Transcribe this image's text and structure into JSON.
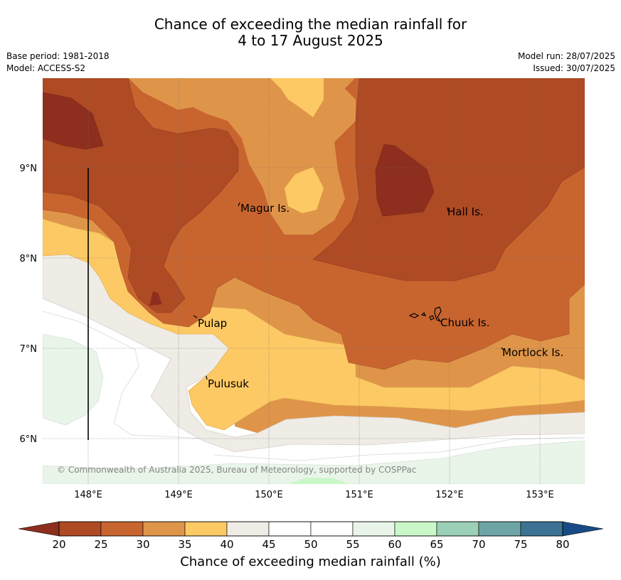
{
  "title": {
    "line1": "Chance of exceeding the median rainfall for",
    "line2": "4 to 17 August 2025"
  },
  "meta": {
    "base_period": "Base period: 1981-2018",
    "model": "Model: ACCESS-S2",
    "model_run": "Model run: 28/07/2025",
    "issued": "Issued: 30/07/2025"
  },
  "map": {
    "lon_ticks": [
      "148°E",
      "149°E",
      "150°E",
      "151°E",
      "152°E",
      "153°E"
    ],
    "lat_ticks": [
      "9°N",
      "8°N",
      "7°N",
      "6°N"
    ],
    "islands": [
      {
        "name": "Magur Is."
      },
      {
        "name": "Hall Is."
      },
      {
        "name": "Pulap"
      },
      {
        "name": "Chuuk Is."
      },
      {
        "name": "Mortlock Is."
      },
      {
        "name": "Pulusuk"
      }
    ],
    "copyright": "© Commonwealth of Australia 2025, Bureau of Meteorology, supported by COSPPac"
  },
  "colorbar": {
    "label": "Chance of exceeding median rainfall (%)",
    "ticks": [
      "20",
      "25",
      "30",
      "35",
      "40",
      "45",
      "50",
      "55",
      "60",
      "65",
      "70",
      "75",
      "80"
    ],
    "colors": [
      "#ae4a24",
      "#c8652f",
      "#df9549",
      "#fdc964",
      "#efebe5",
      "#ffffff",
      "#ffffff",
      "#eaf5e9",
      "#c9f7c8",
      "#9bcfb7",
      "#6ea4a5",
      "#3c7394"
    ],
    "under_color": "#8e2e1e",
    "over_color": "#184b85"
  }
}
